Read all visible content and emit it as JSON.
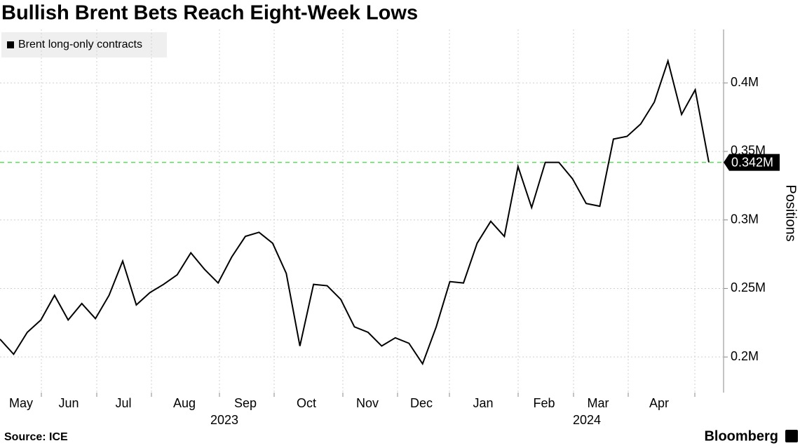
{
  "chart_data": {
    "type": "line",
    "title": "Bullish Brent Bets Reach Eight-Week Lows",
    "source": "Source: ICE",
    "brand": "Bloomberg",
    "y_label": "Positions",
    "months": [
      "May",
      "Jun",
      "Jul",
      "Aug",
      "Sep",
      "Oct",
      "Nov",
      "Dec",
      "Jan",
      "Feb",
      "Mar",
      "Apr"
    ],
    "years": [
      "2023",
      "2024"
    ],
    "series": [
      {
        "name": "Brent long-only contracts",
        "color": "#000000",
        "values": [
          213000,
          202000,
          218000,
          227000,
          245000,
          227000,
          239000,
          228000,
          245000,
          270000,
          238000,
          247000,
          253000,
          260000,
          276000,
          264000,
          254000,
          273000,
          288000,
          291000,
          283000,
          261000,
          208000,
          253000,
          252000,
          242000,
          222000,
          218000,
          208000,
          214000,
          210000,
          195000,
          222000,
          255000,
          254000,
          283000,
          299000,
          288000,
          339000,
          309000,
          342000,
          342000,
          330000,
          312000,
          310000,
          359000,
          361000,
          370000,
          386000,
          416000,
          377000,
          395000,
          342000
        ],
        "last_label": "0.342M"
      }
    ],
    "reference_color": "#5ddc5d",
    "ylim": [
      174000,
      439000
    ],
    "yticks": [
      {
        "value": 200000,
        "label": "0.2M"
      },
      {
        "value": 250000,
        "label": "0.25M"
      },
      {
        "value": 300000,
        "label": "0.3M"
      },
      {
        "value": 350000,
        "label": "0.35M"
      },
      {
        "value": 400000,
        "label": "0.4M"
      }
    ],
    "grid": true
  }
}
